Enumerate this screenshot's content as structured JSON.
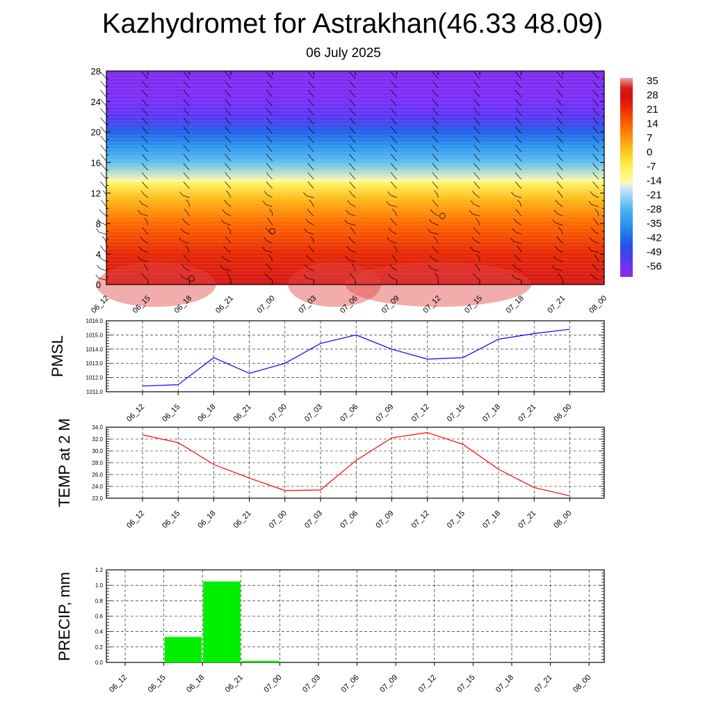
{
  "page": {
    "title": "Kazhydromet for Astrakhan(46.33 48.09)",
    "subtitle": "06 July 2025"
  },
  "chart_data": [
    {
      "type": "heatmap",
      "name": "temperature-wind-cross-section",
      "x": [
        "06_12",
        "06_15",
        "06_18",
        "06_21",
        "07_00",
        "07_03",
        "07_06",
        "07_09",
        "07_12",
        "07_15",
        "07_18",
        "07_21",
        "08_00"
      ],
      "y_ticks": [
        0,
        4,
        8,
        12,
        16,
        20,
        24,
        28
      ],
      "ylim": [
        0,
        28
      ],
      "colorbar": {
        "labels": [
          "35",
          "28",
          "21",
          "14",
          "7",
          "0",
          "-7",
          "-14",
          "-21",
          "-28",
          "-35",
          "-42",
          "-49",
          "-56"
        ],
        "range": [
          -60,
          38
        ]
      },
      "profile": [
        {
          "y": 0,
          "value": 33
        },
        {
          "y": 4,
          "value": 24
        },
        {
          "y": 8,
          "value": 14
        },
        {
          "y": 11,
          "value": 4
        },
        {
          "y": 13.4,
          "value": -8
        },
        {
          "y": 13.6,
          "value": -14
        },
        {
          "y": 16,
          "value": -25
        },
        {
          "y": 18,
          "value": -33
        },
        {
          "y": 20,
          "value": -42
        },
        {
          "y": 22,
          "value": -52
        },
        {
          "y": 24,
          "value": -56
        },
        {
          "y": 28,
          "value": -58
        }
      ]
    },
    {
      "type": "line",
      "name": "pmsl",
      "x": [
        "06_12",
        "06_15",
        "06_18",
        "06_21",
        "07_00",
        "07_03",
        "07_06",
        "07_09",
        "07_12",
        "07_15",
        "07_18",
        "07_21",
        "08_00"
      ],
      "ylabel": "PMSL",
      "ylim": [
        1011.0,
        1016.0
      ],
      "y_ticks": [
        "1011.0",
        "1012.0",
        "1013.0",
        "1014.0",
        "1015.0",
        "1016.0"
      ],
      "series": [
        {
          "values": [
            1011.4,
            1011.5,
            1013.4,
            1012.3,
            1013.0,
            1014.4,
            1015.0,
            1014.0,
            1013.3,
            1013.4,
            1014.7,
            1015.1,
            1015.4
          ],
          "color": "#0000ff"
        }
      ]
    },
    {
      "type": "line",
      "name": "temp2m",
      "x": [
        "06_12",
        "06_15",
        "06_18",
        "06_21",
        "07_00",
        "07_03",
        "07_06",
        "07_09",
        "07_12",
        "07_15",
        "07_18",
        "07_21",
        "08_00"
      ],
      "ylabel": "TEMP at 2 M",
      "ylim": [
        22.0,
        34.0
      ],
      "y_ticks": [
        "22.0",
        "24.0",
        "26.0",
        "28.0",
        "30.0",
        "32.0",
        "34.0"
      ],
      "series": [
        {
          "values": [
            32.7,
            31.4,
            27.7,
            25.4,
            23.3,
            23.4,
            28.4,
            32.2,
            33.1,
            31.1,
            26.9,
            23.8,
            22.4
          ],
          "color": "#ff0000"
        }
      ]
    },
    {
      "type": "bar",
      "name": "precip",
      "x": [
        "06_12",
        "06_15",
        "06_18",
        "06_21",
        "07_00",
        "07_03",
        "07_06",
        "07_09",
        "07_12",
        "07_15",
        "07_18",
        "07_21",
        "08_00"
      ],
      "ylabel": "PRECIP, mm",
      "ylim": [
        0.0,
        1.2
      ],
      "y_ticks": [
        "0.0",
        "0.2",
        "0.4",
        "0.6",
        "0.8",
        "1.0",
        "1.2"
      ],
      "series": [
        {
          "values": [
            0,
            0.33,
            1.05,
            0.02,
            0,
            0,
            0,
            0,
            0,
            0,
            0,
            0,
            0
          ],
          "color": "#00ee00"
        }
      ]
    }
  ]
}
